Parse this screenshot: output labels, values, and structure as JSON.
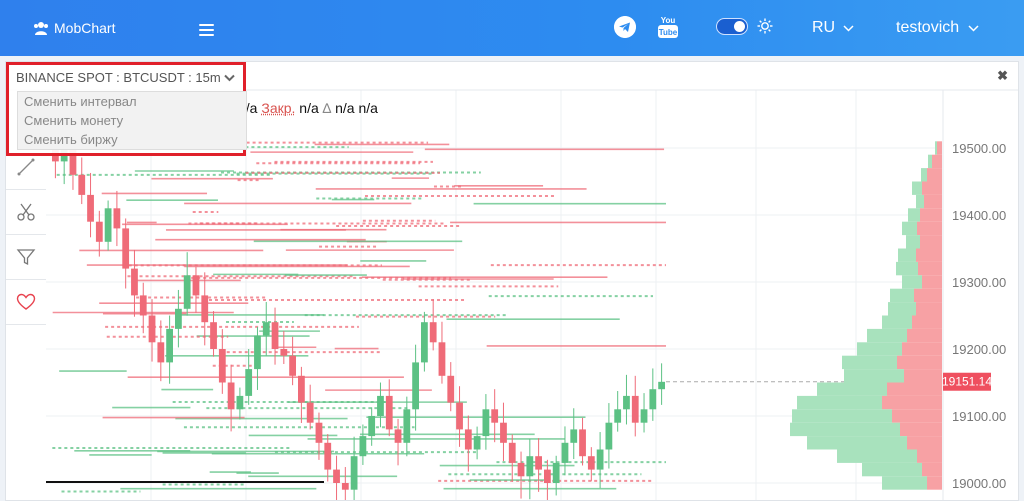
{
  "navbar": {
    "brand": "MobChart",
    "lang": "RU",
    "user": "testovich"
  },
  "market": {
    "selector_label": "BINANCE SPOT : BTCUSDT : 15m",
    "menu": [
      "Сменить интервал",
      "Сменить монету",
      "Сменить биржу"
    ]
  },
  "ohlc": {
    "prefix_value": "n/a",
    "close_label": "Закр.",
    "close_value": "n/a",
    "delta_symbol": "∆",
    "delta_value": "n/a",
    "delta_pct": "n/a"
  },
  "chart": {
    "price_labels": [
      "19500.00",
      "19400.00",
      "19300.00",
      "19200.00",
      "19100.00",
      "19000.00"
    ],
    "current_price": "19151.14"
  },
  "toolbar": {
    "tools": [
      "line-tool-icon",
      "scissors-icon",
      "filter-icon",
      "heart-icon"
    ]
  },
  "colors": {
    "up": "#5cc184",
    "down": "#ef6b78",
    "current_badge": "#ef4f5f"
  },
  "chart_data": {
    "type": "candlestick",
    "symbol": "BTCUSDT",
    "interval": "15m",
    "y_ticks": [
      19000,
      19100,
      19200,
      19300,
      19400,
      19500
    ],
    "last_price": 19151.14,
    "candles_close": [
      19480,
      19520,
      19460,
      19430,
      19390,
      19360,
      19410,
      19380,
      19320,
      19280,
      19250,
      19210,
      19180,
      19230,
      19260,
      19310,
      19280,
      19240,
      19200,
      19150,
      19110,
      19130,
      19170,
      19220,
      19240,
      19200,
      19190,
      19160,
      19120,
      19090,
      19060,
      19020,
      19000,
      18990,
      19040,
      19070,
      19100,
      19130,
      19080,
      19060,
      19110,
      19180,
      19240,
      19210,
      19160,
      19120,
      19080,
      19050,
      19070,
      19110,
      19090,
      19060,
      19030,
      19010,
      19040,
      19020,
      19000,
      19030,
      19060,
      19080,
      19040,
      19020,
      19050,
      19090,
      19110,
      19130,
      19090,
      19110,
      19140,
      19151
    ],
    "volume_profile_levels": [
      19500,
      19480,
      19460,
      19440,
      19420,
      19400,
      19380,
      19360,
      19340,
      19320,
      19300,
      19280,
      19260,
      19240,
      19220,
      19200,
      19180,
      19160,
      19140,
      19120,
      19100,
      19080,
      19060,
      19040,
      19020,
      19000
    ],
    "volume_profile_sell": [
      5,
      10,
      15,
      20,
      18,
      22,
      25,
      22,
      26,
      24,
      20,
      28,
      26,
      30,
      35,
      40,
      45,
      38,
      55,
      60,
      50,
      42,
      35,
      25,
      20,
      15
    ],
    "volume_profile_buy": [
      2,
      4,
      6,
      10,
      8,
      12,
      15,
      14,
      18,
      22,
      20,
      24,
      28,
      30,
      40,
      45,
      55,
      60,
      70,
      85,
      100,
      110,
      100,
      80,
      60,
      45
    ]
  }
}
